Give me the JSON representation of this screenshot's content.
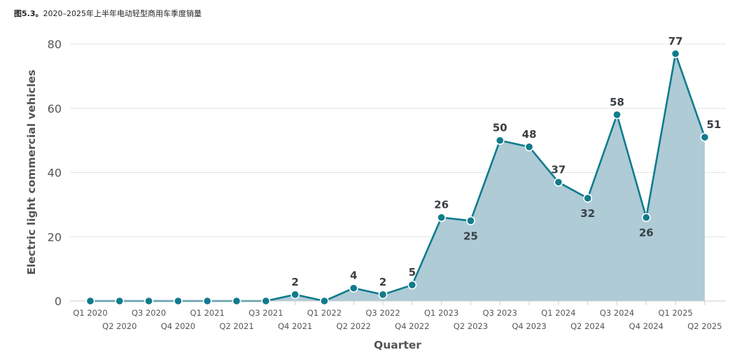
{
  "caption": {
    "label": "图5.3。",
    "text": "2020–2025年上半年电动轻型商用车季度销量"
  },
  "chart_data": {
    "type": "area",
    "title": "",
    "xlabel": "Quarter",
    "ylabel": "Electric light commercial vehicles",
    "ylim": [
      0,
      80
    ],
    "yticks": [
      0,
      20,
      40,
      60,
      80
    ],
    "grid": true,
    "colors": {
      "line": "#107b8c",
      "fill": "#aecbd6",
      "marker": "#107b8c",
      "grid": "#e4e4e4"
    },
    "categories": [
      "Q1 2020",
      "Q2 2020",
      "Q3 2020",
      "Q4 2020",
      "Q1 2021",
      "Q2 2021",
      "Q3 2021",
      "Q4 2021",
      "Q1 2022",
      "Q2 2022",
      "Q3 2022",
      "Q4 2022",
      "Q1 2023",
      "Q2 2023",
      "Q3 2023",
      "Q4 2023",
      "Q1 2024",
      "Q2 2024",
      "Q3 2024",
      "Q4 2024",
      "Q1 2025",
      "Q2 2025"
    ],
    "values": [
      0,
      0,
      0,
      0,
      0,
      0,
      0,
      2,
      0,
      4,
      2,
      5,
      26,
      25,
      50,
      48,
      37,
      32,
      58,
      26,
      77,
      51
    ],
    "data_labels": [
      null,
      null,
      null,
      null,
      null,
      null,
      null,
      "2",
      null,
      "4",
      "2",
      "5",
      "26",
      "25",
      "50",
      "48",
      "37",
      "32",
      "58",
      "26",
      "77",
      "51"
    ]
  }
}
